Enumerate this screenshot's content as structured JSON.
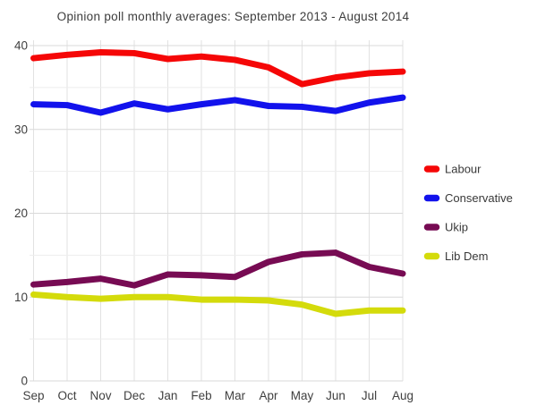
{
  "title": "Opinion poll monthly averages: September 2013 - August 2014",
  "chart_data": {
    "type": "line",
    "categories": [
      "Sep",
      "Oct",
      "Nov",
      "Dec",
      "Jan",
      "Feb",
      "Mar",
      "Apr",
      "May",
      "Jun",
      "Jul",
      "Aug"
    ],
    "series": [
      {
        "name": "Labour",
        "color": "#f50707",
        "values": [
          38.5,
          38.9,
          39.2,
          39.1,
          38.4,
          38.7,
          38.3,
          37.4,
          35.4,
          36.2,
          36.7,
          36.9
        ]
      },
      {
        "name": "Conservative",
        "color": "#1212ec",
        "values": [
          33.0,
          32.9,
          32.0,
          33.1,
          32.4,
          33.0,
          33.5,
          32.8,
          32.7,
          32.2,
          33.2,
          33.8
        ]
      },
      {
        "name": "Ukip",
        "color": "#770b53",
        "values": [
          11.5,
          11.8,
          12.2,
          11.4,
          12.7,
          12.6,
          12.4,
          14.2,
          15.1,
          15.3,
          13.6,
          12.8
        ]
      },
      {
        "name": "Lib Dem",
        "color": "#d4db0b",
        "values": [
          10.3,
          10.0,
          9.8,
          10.0,
          10.0,
          9.7,
          9.7,
          9.6,
          9.1,
          8.0,
          8.4,
          8.4
        ]
      }
    ],
    "title": "Opinion poll monthly averages: September 2013 - August 2014",
    "xlabel": "",
    "ylabel": "",
    "ylim": [
      0,
      40
    ],
    "ytick_labels": [
      "0",
      "10",
      "20",
      "30",
      "40"
    ],
    "minor_gridline_step": 5,
    "grid": true,
    "legend_position": "right",
    "legend_labels": [
      "Labour",
      "Conservative",
      "Ukip",
      "Lib Dem"
    ]
  },
  "style_colors": {
    "major_gridline": "#d9d9d9",
    "minor_gridline": "#ededed",
    "vertical_gridline": "#e2e2e2",
    "tick_text": "#3f3f3f",
    "title_text": "#3c3c3c"
  }
}
